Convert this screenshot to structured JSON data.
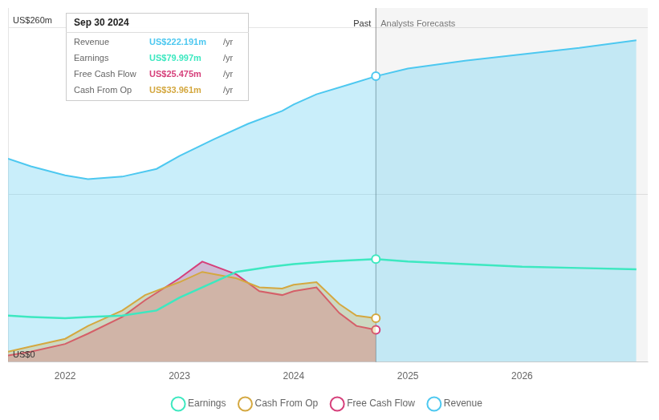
{
  "chart_data": {
    "type": "line",
    "xlim": [
      2021.5,
      2027.1
    ],
    "xticks": [
      2022,
      2023,
      2024,
      2025,
      2026
    ],
    "ylim": [
      0,
      275
    ],
    "yticks": [
      0,
      130,
      260
    ],
    "grid": "y",
    "tick_labels": "x",
    "legend": "bottom",
    "series": [
      {
        "name": "Revenue",
        "color": "#4dc8f0",
        "type": "area",
        "x": [
          2021.5,
          2021.7,
          2022.0,
          2022.2,
          2022.5,
          2022.8,
          2023.0,
          2023.3,
          2023.6,
          2023.9,
          2024.0,
          2024.2,
          2024.5,
          2024.72,
          2025.0,
          2025.5,
          2026.0,
          2026.5,
          2027.0
        ],
        "values": [
          158,
          152,
          145,
          142,
          144,
          150,
          160,
          173,
          185,
          195,
          200,
          208,
          216,
          222,
          228,
          234,
          239,
          244,
          250
        ]
      },
      {
        "name": "Earnings",
        "color": "#3de8c0",
        "type": "line",
        "x": [
          2021.5,
          2021.7,
          2022.0,
          2022.2,
          2022.5,
          2022.8,
          2023.0,
          2023.3,
          2023.5,
          2023.8,
          2024.0,
          2024.3,
          2024.5,
          2024.72,
          2025.0,
          2025.5,
          2026.0,
          2026.5,
          2027.0
        ],
        "values": [
          36,
          35,
          34,
          35,
          36,
          40,
          50,
          62,
          70,
          74,
          76,
          78,
          79,
          80,
          78,
          76,
          74,
          73,
          72
        ]
      },
      {
        "name": "Free Cash Flow",
        "color": "#d63f7a",
        "type": "area",
        "x": [
          2021.5,
          2021.7,
          2022.0,
          2022.2,
          2022.5,
          2022.7,
          2023.0,
          2023.2,
          2023.5,
          2023.7,
          2023.9,
          2024.0,
          2024.2,
          2024.4,
          2024.55,
          2024.72
        ],
        "values": [
          5,
          8,
          14,
          22,
          35,
          48,
          65,
          78,
          68,
          55,
          52,
          55,
          58,
          38,
          28,
          25
        ]
      },
      {
        "name": "Cash From Op",
        "color": "#d4a840",
        "type": "area",
        "x": [
          2021.5,
          2021.7,
          2022.0,
          2022.2,
          2022.5,
          2022.7,
          2023.0,
          2023.2,
          2023.5,
          2023.7,
          2023.9,
          2024.0,
          2024.2,
          2024.4,
          2024.55,
          2024.72
        ],
        "values": [
          8,
          12,
          18,
          28,
          40,
          52,
          62,
          70,
          65,
          58,
          57,
          60,
          62,
          45,
          36,
          34
        ]
      }
    ],
    "annotations": [
      {
        "type": "vline",
        "x": 2024.72,
        "y": 258,
        "labels": [
          "Past",
          "Analysts Forecasts"
        ]
      },
      {
        "type": "text",
        "text": "US$260m",
        "y": 260
      },
      {
        "type": "text",
        "text": "US$0",
        "y": 0
      }
    ],
    "tooltip": {
      "title": "Sep 30 2024",
      "rows": [
        {
          "label": "Revenue",
          "value": "US$222.191m",
          "unit": "/yr",
          "color": "#4dc8f0"
        },
        {
          "label": "Earnings",
          "value": "US$79.997m",
          "unit": "/yr",
          "color": "#3de8c0"
        },
        {
          "label": "Free Cash Flow",
          "value": "US$25.475m",
          "unit": "/yr",
          "color": "#d63f7a"
        },
        {
          "label": "Cash From Op",
          "value": "US$33.961m",
          "unit": "/yr",
          "color": "#d4a840"
        }
      ]
    }
  }
}
